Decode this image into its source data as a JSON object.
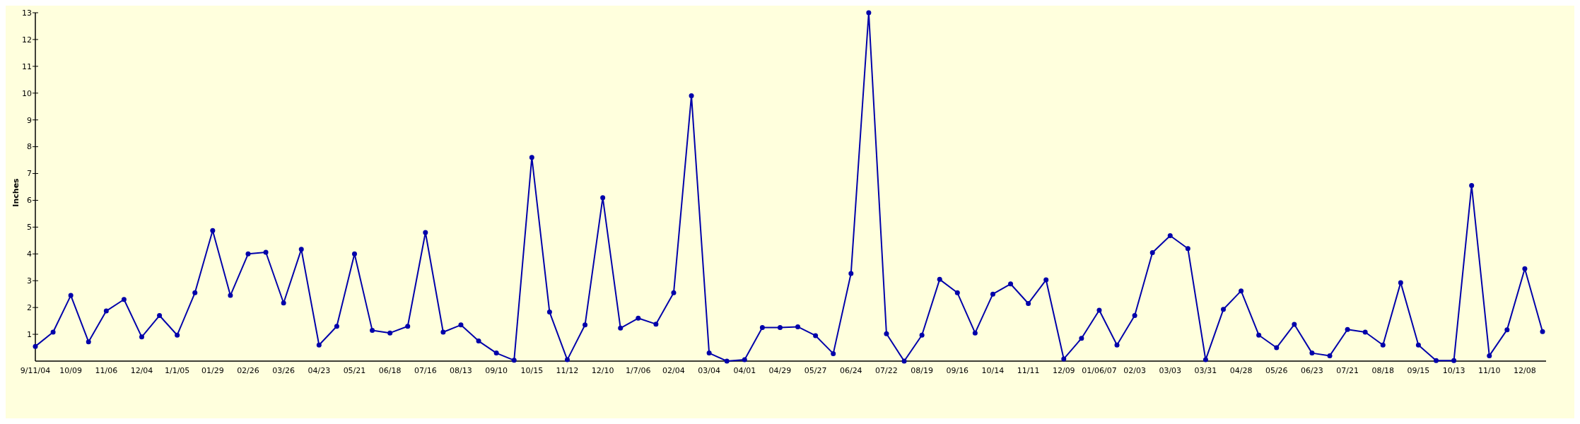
{
  "chart_data": {
    "type": "line",
    "ylabel": "Inches",
    "categories": [
      "9/11/04",
      null,
      "10/09",
      null,
      "11/06",
      null,
      "12/04",
      null,
      "1/1/05",
      null,
      "01/29",
      null,
      "02/26",
      null,
      "03/26",
      null,
      "04/23",
      null,
      "05/21",
      null,
      "06/18",
      null,
      "07/16",
      null,
      "08/13",
      null,
      "09/10",
      null,
      "10/15",
      null,
      "11/12",
      null,
      "12/10",
      null,
      "1/7/06",
      null,
      "02/04",
      null,
      "03/04",
      null,
      "04/01",
      null,
      "04/29",
      null,
      "05/27",
      null,
      "06/24",
      null,
      "07/22",
      null,
      "08/19",
      null,
      "09/16",
      null,
      "10/14",
      null,
      "11/11",
      null,
      "12/09",
      null,
      "01/06/07",
      null,
      "02/03",
      null,
      "03/03",
      null,
      "03/31",
      null,
      "04/28",
      null,
      "05/26",
      null,
      "06/23",
      null,
      "07/21",
      null,
      "08/18",
      null,
      "09/15",
      null,
      "10/13",
      null,
      "11/10",
      null,
      "12/08",
      null
    ],
    "series": [
      {
        "color": "#0000aa",
        "values": [
          0.55,
          1.08,
          2.45,
          0.72,
          1.87,
          2.3,
          0.9,
          1.7,
          0.97,
          2.55,
          4.87,
          2.45,
          4.0,
          4.06,
          2.17,
          4.17,
          0.6,
          1.3,
          4.0,
          1.15,
          1.05,
          1.3,
          4.8,
          1.08,
          1.35,
          0.75,
          0.3,
          0.03,
          7.6,
          1.83,
          0.05,
          1.35,
          6.1,
          1.23,
          1.6,
          1.38,
          2.55,
          9.9,
          0.3,
          0.0,
          0.05,
          1.25,
          1.25,
          1.28,
          0.95,
          0.28,
          3.27,
          13.0,
          1.02,
          0.0,
          0.97,
          3.05,
          2.55,
          1.05,
          2.5,
          2.88,
          2.15,
          3.03,
          0.08,
          0.85,
          1.9,
          0.6,
          1.7,
          4.05,
          4.68,
          4.2,
          0.05,
          1.93,
          2.62,
          0.97,
          0.5,
          1.37,
          0.3,
          0.2,
          1.18,
          1.08,
          0.6,
          2.93,
          0.6,
          0.02,
          0.02,
          6.55,
          0.2,
          1.17,
          3.45,
          1.1
        ]
      }
    ],
    "ylim": [
      0,
      13
    ],
    "yticks": [
      1,
      2,
      3,
      4,
      5,
      6,
      7,
      8,
      9,
      10,
      11,
      12,
      13
    ],
    "marker": "circle",
    "line_style": "solid",
    "grid": false
  }
}
